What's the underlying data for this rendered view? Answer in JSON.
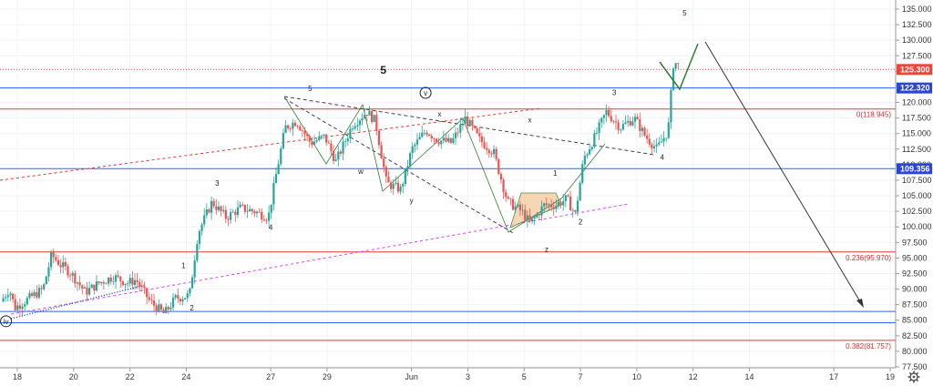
{
  "colors": {
    "up": "#26a69a",
    "down": "#ef5350",
    "blue_line": "#2962ff",
    "red_line": "#e53935",
    "price_tag_red": "#f44336",
    "price_tag_blue": "#2946d4",
    "pink_dotted": "#e040fb",
    "dashed_dark": "#444444",
    "green_line": "#2e7d32",
    "triangle_fill": "#f5cfa8"
  },
  "chart_data": {
    "type": "candlestick",
    "ylim": [
      77.5,
      136.5
    ],
    "y_ticks": [
      135.0,
      132.5,
      130.0,
      127.5,
      125.0,
      122.5,
      120.0,
      117.5,
      115.0,
      112.5,
      110.0,
      107.5,
      105.0,
      102.5,
      100.0,
      97.5,
      95.0,
      92.5,
      90.0,
      87.5,
      85.0,
      82.5,
      80.0,
      77.5
    ],
    "y_tick_labels": [
      "135.000",
      "132.500",
      "130.000",
      "127.500",
      "125.000",
      "122.500",
      "120.000",
      "117.500",
      "115.000",
      "112.500",
      "110.000",
      "107.500",
      "105.000",
      "102.500",
      "100.000",
      "97.500",
      "95.000",
      "92.500",
      "90.000",
      "87.500",
      "85.000",
      "82.500",
      "80.000",
      "77.500"
    ],
    "x_day_range": [
      17.5,
      19.5
    ],
    "x_ticks": [
      {
        "label": "18",
        "day": 18
      },
      {
        "label": "20",
        "day": 20
      },
      {
        "label": "22",
        "day": 22
      },
      {
        "label": "24",
        "day": 24
      },
      {
        "label": "27",
        "day": 27
      },
      {
        "label": "29",
        "day": 29
      },
      {
        "label": "Jun",
        "day": 32
      },
      {
        "label": "3",
        "day": 34
      },
      {
        "label": "5",
        "day": 36
      },
      {
        "label": "7",
        "day": 38
      },
      {
        "label": "10",
        "day": 40
      },
      {
        "label": "12",
        "day": 42
      },
      {
        "label": "14",
        "day": 44
      },
      {
        "label": "17",
        "day": 47
      },
      {
        "label": "19",
        "day": 49
      }
    ],
    "price_path": [
      [
        17.5,
        88.0
      ],
      [
        17.8,
        90.0
      ],
      [
        18.0,
        87.0
      ],
      [
        18.5,
        88.5
      ],
      [
        19.0,
        90.0
      ],
      [
        19.3,
        95.5
      ],
      [
        19.6,
        94.0
      ],
      [
        20.0,
        92.5
      ],
      [
        20.5,
        89.5
      ],
      [
        21.0,
        91.0
      ],
      [
        21.5,
        92.0
      ],
      [
        22.0,
        91.0
      ],
      [
        22.3,
        91.5
      ],
      [
        22.8,
        88.0
      ],
      [
        23.3,
        86.0
      ],
      [
        23.7,
        88.5
      ],
      [
        24.2,
        89.0
      ],
      [
        24.5,
        99.0
      ],
      [
        25.0,
        104.0
      ],
      [
        25.5,
        101.5
      ],
      [
        26.0,
        103.0
      ],
      [
        26.5,
        102.5
      ],
      [
        27.0,
        101.5
      ],
      [
        27.3,
        109.0
      ],
      [
        27.6,
        116.0
      ],
      [
        28.0,
        117.0
      ],
      [
        28.5,
        113.5
      ],
      [
        29.0,
        114.5
      ],
      [
        29.4,
        110.5
      ],
      [
        30.0,
        116.5
      ],
      [
        30.5,
        118.5
      ],
      [
        30.8,
        117.0
      ],
      [
        31.2,
        107.0
      ],
      [
        31.7,
        106.0
      ],
      [
        32.1,
        112.5
      ],
      [
        32.6,
        115.5
      ],
      [
        33.0,
        114.0
      ],
      [
        33.5,
        113.5
      ],
      [
        34.0,
        117.5
      ],
      [
        34.5,
        114.0
      ],
      [
        35.0,
        112.0
      ],
      [
        35.5,
        104.0
      ],
      [
        36.0,
        102.5
      ],
      [
        36.3,
        100.5
      ],
      [
        36.8,
        103.5
      ],
      [
        37.2,
        103.5
      ],
      [
        37.6,
        104.5
      ],
      [
        37.9,
        102.0
      ],
      [
        38.2,
        111.0
      ],
      [
        38.6,
        114.5
      ],
      [
        39.0,
        118.5
      ],
      [
        39.5,
        116.0
      ],
      [
        40.0,
        117.5
      ],
      [
        40.4,
        114.5
      ],
      [
        40.8,
        112.5
      ],
      [
        41.2,
        115.5
      ],
      [
        41.4,
        127.0
      ],
      [
        41.5,
        126.0
      ]
    ],
    "horizontal_levels": [
      {
        "price": 125.3,
        "label": "125.300",
        "style": "red-dotted-tag"
      },
      {
        "price": 122.32,
        "label": "122.320",
        "style": "blue-tag"
      },
      {
        "price": 118.945,
        "label": "0(118.945)",
        "style": "fib"
      },
      {
        "price": 109.356,
        "label": "109.356",
        "style": "blue-tag"
      },
      {
        "price": 95.97,
        "label": "0.236(95.970)",
        "style": "fib"
      },
      {
        "price": 86.4,
        "label": "",
        "style": "blue-plain"
      },
      {
        "price": 84.6,
        "label": "",
        "style": "blue-plain"
      },
      {
        "price": 81.757,
        "label": "0.382(81.757)",
        "style": "fib"
      }
    ],
    "wave_labels": [
      {
        "text": "iv",
        "day": 17.6,
        "price": 84.4,
        "circled": true
      },
      {
        "text": "1",
        "day": 23.9,
        "price": 93.4
      },
      {
        "text": "2",
        "day": 24.2,
        "price": 86.6
      },
      {
        "text": "3",
        "day": 25.1,
        "price": 106.6
      },
      {
        "text": "4",
        "day": 27.0,
        "price": 99.5
      },
      {
        "text": "5",
        "day": 28.4,
        "price": 121.8
      },
      {
        "text": "5",
        "day": 31.0,
        "price": 124.6,
        "big": true
      },
      {
        "text": "v",
        "day": 32.5,
        "price": 121.1,
        "circled": true
      },
      {
        "text": "w",
        "day": 30.2,
        "price": 108.5
      },
      {
        "text": "x",
        "day": 33.0,
        "price": 117.7
      },
      {
        "text": "y",
        "day": 32.0,
        "price": 103.8
      },
      {
        "text": "x",
        "day": 36.2,
        "price": 116.8
      },
      {
        "text": "z",
        "day": 36.8,
        "price": 96.0
      },
      {
        "text": "1",
        "day": 37.1,
        "price": 108.2
      },
      {
        "text": "2",
        "day": 38.0,
        "price": 100.4
      },
      {
        "text": "3",
        "day": 39.2,
        "price": 121.2
      },
      {
        "text": "4",
        "day": 40.9,
        "price": 110.8
      },
      {
        "text": "5",
        "day": 41.7,
        "price": 134.0
      }
    ]
  }
}
